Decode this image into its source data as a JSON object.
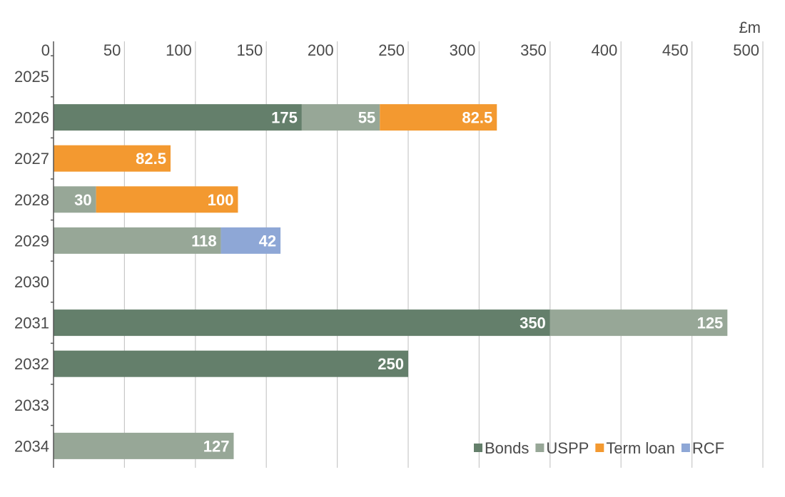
{
  "chart_data": {
    "type": "bar",
    "orientation": "horizontal",
    "stacked": true,
    "unit": "£m",
    "categories": [
      "2025",
      "2026",
      "2027",
      "2028",
      "2029",
      "2030",
      "2031",
      "2032",
      "2033",
      "2034"
    ],
    "x_ticks": [
      0,
      50,
      100,
      150,
      200,
      250,
      300,
      350,
      400,
      450,
      500
    ],
    "xlim": [
      0,
      500
    ],
    "grid": true,
    "legend_position": "bottom-right",
    "series": [
      {
        "name": "Bonds",
        "color": "#647f6b",
        "values": [
          0,
          175,
          0,
          0,
          0,
          0,
          350,
          250,
          0,
          0
        ]
      },
      {
        "name": "USPP",
        "color": "#97a797",
        "values": [
          0,
          55,
          0,
          30,
          118,
          0,
          125,
          0,
          0,
          127
        ]
      },
      {
        "name": "Term loan",
        "color": "#f39930",
        "values": [
          0,
          82.5,
          82.5,
          100,
          0,
          0,
          0,
          0,
          0,
          0
        ]
      },
      {
        "name": "RCF",
        "color": "#8ea7d6",
        "values": [
          0,
          0,
          0,
          0,
          42,
          0,
          0,
          0,
          0,
          0
        ]
      }
    ]
  }
}
